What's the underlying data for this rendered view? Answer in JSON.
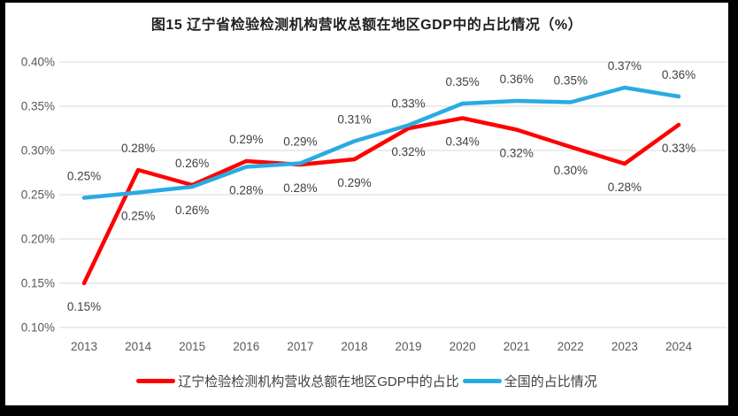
{
  "title": "图15 辽宁省检验检测机构营收总额在地区GDP中的占比情况（%）",
  "colors": {
    "frame": "#000000",
    "chart_background": "#ffffff",
    "gridline": "#d9d9d9",
    "axis_tick_text": "#595959",
    "data_label_text": "#404040",
    "title_text": "#1f1f1f",
    "legend_text": "#404040",
    "liaoning_series": "#ff0000",
    "national_series": "#29abe2"
  },
  "chart_data": {
    "type": "line",
    "title": "图15 辽宁省检验检测机构营收总额在地区GDP中的占比情况（%）",
    "xlabel": "",
    "ylabel": "",
    "grid": true,
    "legend_position": "bottom",
    "ylim": [
      0.1,
      0.4
    ],
    "y_tick_labels": [
      "0.40%",
      "0.35%",
      "0.30%",
      "0.25%",
      "0.20%",
      "0.15%",
      "0.10%"
    ],
    "y_tick_values": [
      0.4,
      0.35,
      0.3,
      0.25,
      0.2,
      0.15,
      0.1
    ],
    "categories": [
      "2013",
      "2014",
      "2015",
      "2016",
      "2017",
      "2018",
      "2019",
      "2020",
      "2021",
      "2022",
      "2023",
      "2024"
    ],
    "series": [
      {
        "name": "辽宁检验检测机构营收总额在地区GDP中的占比",
        "color": "#ff0000",
        "values": [
          0.15,
          0.278,
          0.261,
          0.288,
          0.284,
          0.29,
          0.325,
          0.3365,
          0.3235,
          0.304,
          0.285,
          0.329
        ],
        "labels": [
          "0.15%",
          "0.28%",
          "0.26%",
          "0.29%",
          "0.28%",
          "0.29%",
          "0.32%",
          "0.34%",
          "0.32%",
          "0.30%",
          "0.28%",
          "0.33%"
        ]
      },
      {
        "name": "全国的占比情况",
        "color": "#29abe2",
        "values": [
          0.2465,
          0.2525,
          0.259,
          0.2815,
          0.2855,
          0.3105,
          0.3285,
          0.353,
          0.356,
          0.3545,
          0.371,
          0.361
        ],
        "labels": [
          "0.25%",
          "0.25%",
          "0.26%",
          "0.28%",
          "0.29%",
          "0.31%",
          "0.33%",
          "0.35%",
          "0.36%",
          "0.35%",
          "0.37%",
          "0.36%"
        ]
      }
    ]
  }
}
